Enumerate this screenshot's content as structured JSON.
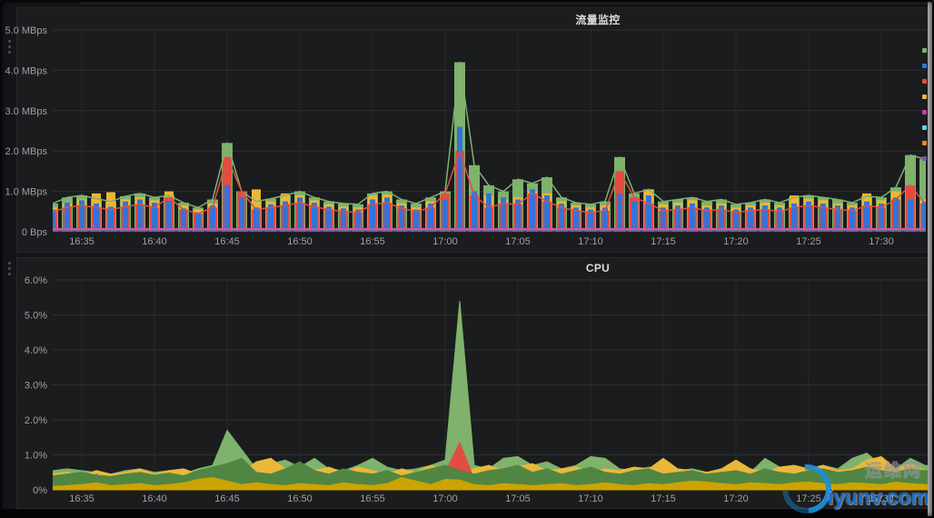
{
  "panel1": {
    "title": "流量监控"
  },
  "panel2": {
    "title": "CPU"
  },
  "watermark": {
    "cn": "运维网",
    "en": "iyunv.com"
  },
  "legend_colors": [
    "#7EB26D",
    "#3274D9",
    "#E24D42",
    "#EAB839",
    "#BA43A9",
    "#6ED0E0",
    "#EF843C",
    "#705DA0"
  ],
  "chart_data": [
    {
      "type": "bar",
      "title": "流量监控",
      "unit": "MBps",
      "x_start": "16:33",
      "x_step_minutes": 1,
      "x_ticks": [
        "16:35",
        "16:40",
        "16:45",
        "16:50",
        "16:55",
        "17:00",
        "17:05",
        "17:10",
        "17:15",
        "17:20",
        "17:25",
        "17:30"
      ],
      "ylim": [
        0,
        5
      ],
      "grid": true,
      "legend_position": "right-clipped",
      "y_ticks": {
        "values": [
          0,
          1,
          2,
          3,
          4,
          5
        ],
        "labels": [
          "0 Bps",
          "1.0 MBps",
          "2.0 MBps",
          "3.0 MBps",
          "4.0 MBps",
          "5.0 MBps"
        ]
      },
      "series": [
        {
          "name": "green",
          "color": "#7EB26D",
          "render": "bar+line",
          "values": [
            0.7,
            0.85,
            0.9,
            0.82,
            0.75,
            0.88,
            0.95,
            0.85,
            0.9,
            0.72,
            0.6,
            0.8,
            2.2,
            1.0,
            0.75,
            0.82,
            0.9,
            1.0,
            0.85,
            0.75,
            0.7,
            0.68,
            0.95,
            1.0,
            0.8,
            0.7,
            0.85,
            1.0,
            4.2,
            1.65,
            1.15,
            1.0,
            1.3,
            1.2,
            1.35,
            0.85,
            0.72,
            0.68,
            0.75,
            1.85,
            0.95,
            1.05,
            0.75,
            0.8,
            0.85,
            0.75,
            0.8,
            0.68,
            0.72,
            0.8,
            0.72,
            0.85,
            0.9,
            0.85,
            0.8,
            0.72,
            0.88,
            0.85,
            1.1,
            1.9,
            1.8
          ]
        },
        {
          "name": "yellow",
          "color": "#EAB839",
          "render": "bar",
          "values": [
            0.6,
            0.7,
            0.8,
            0.95,
            0.98,
            0.8,
            0.85,
            0.78,
            1.0,
            0.65,
            0.55,
            0.7,
            1.0,
            0.9,
            1.05,
            0.75,
            0.95,
            0.9,
            0.78,
            0.68,
            0.62,
            0.6,
            0.9,
            0.92,
            0.7,
            0.6,
            0.75,
            0.95,
            1.0,
            0.85,
            0.9,
            0.78,
            0.85,
            1.0,
            0.95,
            0.75,
            0.65,
            0.6,
            0.65,
            0.9,
            0.8,
            1.05,
            0.68,
            0.72,
            0.78,
            0.65,
            0.7,
            0.6,
            0.65,
            0.72,
            0.65,
            0.9,
            0.82,
            0.78,
            0.7,
            0.65,
            0.95,
            0.78,
            1.0,
            0.88,
            0.8
          ]
        },
        {
          "name": "red",
          "color": "#E24D42",
          "render": "bar+line",
          "values": [
            0.5,
            0.6,
            0.65,
            0.6,
            0.55,
            0.62,
            0.68,
            0.6,
            0.85,
            0.55,
            0.45,
            0.6,
            1.85,
            1.0,
            0.55,
            0.6,
            0.65,
            0.72,
            0.62,
            0.55,
            0.5,
            0.48,
            0.68,
            0.72,
            0.58,
            0.5,
            0.6,
            0.95,
            2.0,
            0.9,
            0.6,
            0.7,
            0.68,
            0.95,
            0.75,
            0.6,
            0.52,
            0.48,
            0.52,
            1.5,
            0.85,
            0.7,
            0.52,
            0.55,
            0.6,
            0.52,
            0.55,
            0.48,
            0.52,
            0.55,
            0.5,
            0.6,
            0.65,
            0.6,
            0.55,
            0.52,
            0.65,
            0.6,
            0.8,
            1.15,
            0.7
          ]
        },
        {
          "name": "blue",
          "color": "#3274D9",
          "render": "bar",
          "values": [
            0.55,
            0.72,
            0.78,
            0.7,
            0.62,
            0.75,
            0.8,
            0.72,
            0.76,
            0.58,
            0.48,
            0.65,
            1.15,
            0.85,
            0.6,
            0.68,
            0.75,
            0.85,
            0.72,
            0.62,
            0.58,
            0.55,
            0.8,
            0.85,
            0.65,
            0.55,
            0.7,
            0.8,
            2.6,
            1.0,
            0.95,
            0.85,
            0.8,
            1.05,
            0.9,
            0.7,
            0.6,
            0.55,
            0.6,
            0.95,
            0.75,
            0.9,
            0.6,
            0.65,
            0.7,
            0.6,
            0.65,
            0.55,
            0.6,
            0.65,
            0.6,
            0.7,
            0.75,
            0.7,
            0.65,
            0.6,
            0.75,
            0.7,
            0.85,
            0.8,
            0.75
          ]
        },
        {
          "name": "magenta",
          "color": "#BA43A9",
          "render": "line",
          "flat": 0.07
        },
        {
          "name": "cyan",
          "color": "#6ED0E0",
          "render": "line",
          "flat": 0.04
        },
        {
          "name": "orange",
          "color": "#EF843C",
          "render": "line",
          "flat": 0.05
        },
        {
          "name": "violet",
          "color": "#705DA0",
          "render": "line",
          "flat": 0.03
        }
      ]
    },
    {
      "type": "area",
      "title": "CPU",
      "unit": "%",
      "x_start": "16:33",
      "x_step_minutes": 1,
      "x_ticks": [
        "16:35",
        "16:40",
        "16:45",
        "16:50",
        "16:55",
        "17:00",
        "17:05",
        "17:10",
        "17:15",
        "17:20",
        "17:25",
        "17:30"
      ],
      "ylim": [
        0,
        6
      ],
      "grid": true,
      "y_ticks": {
        "values": [
          0,
          1,
          2,
          3,
          4,
          5,
          6
        ],
        "labels": [
          "0%",
          "1.0%",
          "2.0%",
          "3.0%",
          "4.0%",
          "5.0%",
          "6.0%"
        ]
      },
      "series": [
        {
          "name": "light-green",
          "color": "#7EB26D",
          "render": "area",
          "values": [
            0.55,
            0.6,
            0.55,
            0.5,
            0.45,
            0.55,
            0.6,
            0.5,
            0.55,
            0.45,
            0.6,
            0.7,
            1.7,
            1.15,
            0.6,
            0.75,
            0.85,
            0.65,
            0.9,
            0.6,
            0.55,
            0.7,
            0.9,
            0.65,
            0.55,
            0.6,
            0.7,
            0.85,
            5.4,
            0.7,
            0.6,
            0.9,
            0.95,
            0.7,
            0.8,
            0.6,
            0.7,
            0.95,
            0.9,
            0.6,
            0.55,
            0.65,
            0.6,
            0.55,
            0.6,
            0.5,
            0.55,
            0.6,
            0.5,
            0.9,
            0.65,
            0.55,
            0.6,
            0.7,
            0.6,
            0.9,
            1.05,
            0.7,
            0.6,
            0.9,
            0.7,
            0.65
          ]
        },
        {
          "name": "yellow",
          "color": "#EAB839",
          "render": "area",
          "values": [
            0.45,
            0.5,
            0.4,
            0.55,
            0.45,
            0.5,
            0.6,
            0.45,
            0.55,
            0.6,
            0.45,
            0.55,
            0.6,
            0.5,
            0.8,
            0.9,
            0.6,
            0.75,
            0.55,
            0.65,
            0.5,
            0.65,
            0.55,
            0.45,
            0.6,
            0.5,
            0.7,
            0.55,
            0.5,
            0.6,
            0.7,
            0.55,
            0.65,
            0.75,
            0.55,
            0.6,
            0.65,
            0.5,
            0.6,
            0.55,
            0.65,
            0.6,
            0.9,
            0.6,
            0.55,
            0.5,
            0.6,
            0.85,
            0.6,
            0.5,
            0.65,
            0.7,
            0.6,
            0.7,
            0.55,
            0.6,
            0.85,
            0.95,
            0.6,
            0.75,
            0.55,
            0.5
          ]
        },
        {
          "name": "orange",
          "color": "#EF843C",
          "render": "area",
          "values": [
            0.03,
            0.04,
            0.03,
            0.05,
            0.3,
            0.04,
            0.03,
            0.04,
            0.03,
            0.04,
            0.03,
            0.04,
            0.05,
            0.03,
            0.04,
            0.03,
            0.04,
            0.03,
            0.06,
            0.04,
            0.03,
            0.04,
            0.05,
            0.04,
            0.03,
            0.04,
            0.03,
            0.05,
            0.04,
            0.03,
            0.04,
            0.03,
            0.04,
            0.05,
            0.03,
            0.04,
            0.03,
            0.05,
            0.4,
            0.04,
            0.03,
            0.04,
            0.45,
            0.05,
            0.03,
            0.04,
            0.03,
            0.04,
            0.05,
            0.03,
            0.04,
            0.03,
            0.04,
            0.05,
            0.03,
            0.04,
            0.4,
            0.06,
            0.03,
            0.04,
            0.03,
            0.03
          ]
        },
        {
          "name": "red",
          "color": "#E24D42",
          "render": "area",
          "values": [
            0.04,
            0.04,
            0.05,
            0.06,
            0.05,
            0.04,
            0.05,
            0.04,
            0.05,
            0.2,
            0.05,
            0.04,
            0.06,
            0.05,
            0.04,
            0.05,
            0.04,
            0.05,
            0.35,
            0.06,
            0.04,
            0.05,
            0.04,
            0.05,
            0.04,
            0.05,
            0.06,
            0.5,
            1.35,
            0.3,
            0.06,
            0.05,
            0.04,
            0.05,
            0.04,
            0.05,
            0.04,
            0.05,
            0.06,
            0.05,
            0.04,
            0.05,
            0.04,
            0.05,
            0.04,
            0.05,
            0.04,
            0.05,
            0.06,
            0.05,
            0.04,
            0.05,
            0.04,
            0.05,
            0.04,
            0.12,
            0.1,
            0.05,
            0.04,
            0.05,
            0.04,
            0.04
          ]
        },
        {
          "name": "blue",
          "color": "#3274D9",
          "render": "area",
          "values": [
            0.03,
            0.03,
            0.04,
            0.45,
            0.05,
            0.03,
            0.04,
            0.03,
            0.04,
            0.03,
            0.04,
            0.03,
            0.05,
            0.04,
            0.03,
            0.04,
            0.03,
            0.04,
            0.05,
            0.03,
            0.04,
            0.05,
            0.4,
            0.06,
            0.03,
            0.04,
            0.03,
            0.04,
            0.05,
            0.04,
            0.03,
            0.04,
            0.03,
            0.04,
            0.03,
            0.04,
            0.05,
            0.35,
            0.06,
            0.03,
            0.04,
            0.03,
            0.04,
            0.05,
            0.03,
            0.04,
            0.03,
            0.04,
            0.05,
            0.03,
            0.04,
            0.03,
            0.04,
            0.03,
            0.04,
            0.5,
            0.08,
            0.04,
            0.03,
            0.04,
            0.03,
            0.03
          ]
        },
        {
          "name": "violet",
          "color": "#705DA0",
          "render": "area",
          "values": [
            0.02,
            0.03,
            0.02,
            0.03,
            0.02,
            0.03,
            0.02,
            0.03,
            0.02,
            0.03,
            0.02,
            0.03,
            0.04,
            0.03,
            0.02,
            0.03,
            0.02,
            0.03,
            0.04,
            0.02,
            0.03,
            0.02,
            0.03,
            0.4,
            0.05,
            0.03,
            0.02,
            0.03,
            0.04,
            0.03,
            0.02,
            0.03,
            0.02,
            0.03,
            0.02,
            0.03,
            0.02,
            0.03,
            0.04,
            0.02,
            0.03,
            0.02,
            0.15,
            0.03,
            0.02,
            0.03,
            0.02,
            0.55,
            0.08,
            0.03,
            0.02,
            0.03,
            0.02,
            0.03,
            0.02,
            0.03,
            0.04,
            0.03,
            0.02,
            0.03,
            0.02,
            0.02
          ]
        },
        {
          "name": "magenta",
          "color": "#BA43A9",
          "render": "area",
          "values": [
            0.02,
            0.02,
            0.02,
            0.02,
            0.02,
            0.02,
            0.02,
            0.02,
            0.02,
            0.02,
            0.02,
            0.02,
            0.02,
            0.02,
            0.02,
            0.02,
            0.02,
            0.02,
            0.02,
            0.02,
            0.02,
            0.02,
            0.02,
            0.02,
            0.02,
            0.02,
            0.02,
            0.02,
            0.02,
            0.02,
            0.02,
            0.02,
            0.02,
            0.02,
            0.02,
            0.02,
            0.02,
            0.02,
            0.02,
            0.02,
            0.02,
            0.02,
            0.2,
            0.04,
            0.02,
            0.02,
            0.02,
            0.02,
            0.12,
            0.02,
            0.02,
            0.02,
            0.02,
            0.02,
            0.02,
            0.02,
            0.02,
            0.02,
            0.02,
            0.02,
            0.02,
            0.02
          ]
        },
        {
          "name": "dark-green",
          "color": "#508642",
          "render": "area",
          "values": [
            0.4,
            0.45,
            0.5,
            0.42,
            0.38,
            0.45,
            0.5,
            0.42,
            0.48,
            0.4,
            0.55,
            0.65,
            0.75,
            0.9,
            0.5,
            0.45,
            0.6,
            0.8,
            0.55,
            0.45,
            0.6,
            0.5,
            0.45,
            0.55,
            0.4,
            0.5,
            0.6,
            0.7,
            0.55,
            0.45,
            0.55,
            0.6,
            0.7,
            0.5,
            0.6,
            0.45,
            0.55,
            0.65,
            0.5,
            0.45,
            0.55,
            0.6,
            0.45,
            0.5,
            0.55,
            0.45,
            0.5,
            0.55,
            0.45,
            0.6,
            0.5,
            0.45,
            0.55,
            0.6,
            0.5,
            0.55,
            0.65,
            0.55,
            0.5,
            0.6,
            0.55,
            0.5
          ]
        },
        {
          "name": "olive",
          "color": "#CCA300",
          "render": "area",
          "values": [
            0.1,
            0.12,
            0.15,
            0.2,
            0.12,
            0.15,
            0.18,
            0.12,
            0.15,
            0.2,
            0.3,
            0.35,
            0.25,
            0.15,
            0.2,
            0.15,
            0.12,
            0.18,
            0.15,
            0.12,
            0.2,
            0.15,
            0.12,
            0.18,
            0.35,
            0.25,
            0.15,
            0.3,
            0.28,
            0.15,
            0.12,
            0.18,
            0.15,
            0.12,
            0.15,
            0.18,
            0.12,
            0.15,
            0.2,
            0.15,
            0.12,
            0.18,
            0.15,
            0.2,
            0.25,
            0.22,
            0.18,
            0.15,
            0.2,
            0.18,
            0.15,
            0.2,
            0.22,
            0.18,
            0.15,
            0.2,
            0.18,
            0.15,
            0.22,
            0.18,
            0.15,
            0.12
          ]
        }
      ]
    }
  ]
}
